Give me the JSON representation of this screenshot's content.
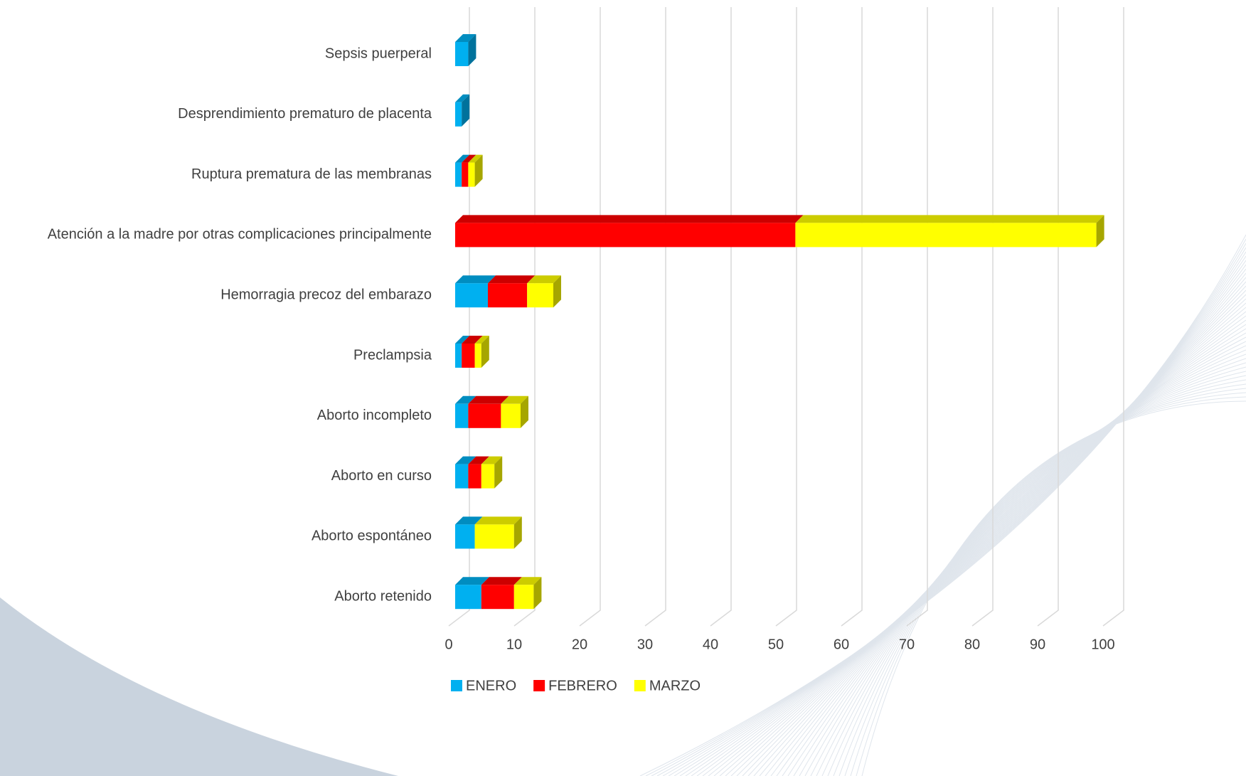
{
  "chart_data": {
    "type": "stacked-bar-horizontal-3d",
    "categories": [
      "Sepsis puerperal",
      "Desprendimiento prematuro de placenta",
      "Ruptura prematura de las membranas",
      "Atención a la madre por otras complicaciones principalmente",
      "Hemorragia precoz del embarazo",
      "Preclampsia",
      "Aborto incompleto",
      "Aborto en curso",
      "Aborto espontáneo",
      "Aborto retenido"
    ],
    "series": [
      {
        "name": "ENERO",
        "color": "#00b0f0",
        "values": [
          2,
          1,
          1,
          0,
          5,
          1,
          2,
          2,
          3,
          4
        ]
      },
      {
        "name": "FEBRERO",
        "color": "#ff0000",
        "values": [
          0,
          0,
          1,
          52,
          6,
          2,
          5,
          2,
          0,
          5
        ]
      },
      {
        "name": "MARZO",
        "color": "#ffff00",
        "values": [
          0,
          0,
          1,
          46,
          4,
          1,
          3,
          2,
          6,
          3
        ]
      }
    ],
    "xlim": [
      0,
      100
    ],
    "xticks": [
      0,
      10,
      20,
      30,
      40,
      50,
      60,
      70,
      80,
      90,
      100
    ],
    "grid": true,
    "legend": "bottom"
  }
}
